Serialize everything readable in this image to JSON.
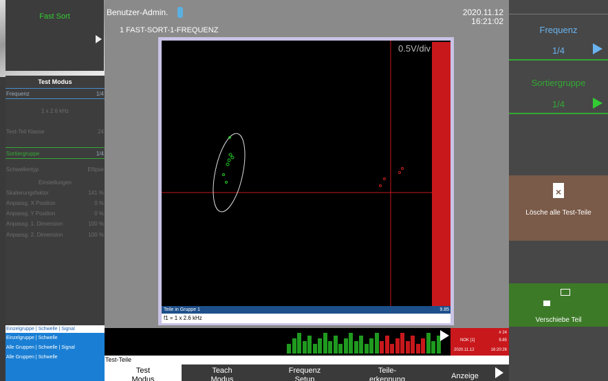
{
  "left_panel": {
    "title": "Fast Sort",
    "menu_title": "Test Modus",
    "items": [
      {
        "label": "Frequenz",
        "value": "1/4"
      },
      {
        "label": "1 x 2.6 kHz"
      },
      {
        "label": "Test-Teil Klasse",
        "value": "24"
      },
      {
        "label": "Sortiergruppe",
        "value": "1/4"
      },
      {
        "label": "Schwellentyp",
        "value": "Ellipse"
      },
      {
        "label": "Einstellungen"
      },
      {
        "label": "Skalierungsfaktor",
        "value": "141 %"
      },
      {
        "label": "Anpassg. X Position",
        "value": "0 %"
      },
      {
        "label": "Anpassg. Y Position",
        "value": "0 %"
      },
      {
        "label": "Anpassg. 1. Dimension",
        "value": "100 %"
      },
      {
        "label": "Anpassg. 2. Dimension",
        "value": "100 %"
      }
    ],
    "display_modes": [
      "Einzelgruppe | Schwelle | Signal",
      "Einzelgruppe | Schwelle",
      "Alle Gruppen | Schwelle | Signal",
      "Alle Gruppen | Schwelle"
    ]
  },
  "header": {
    "user": "Benutzer-Admin.",
    "date": "2020.11.12",
    "time": "16:21:02",
    "program": "1 FAST-SORT-1-FREQUENZ"
  },
  "scope": {
    "scale": "0.5V/div",
    "group_label": "Teile in Gruppe 1",
    "group_value": "9.85",
    "frequency": "f1 = 1 x 2.6 kHz"
  },
  "result": {
    "count": "# 24",
    "status": "NOK [1]",
    "value": "9.85",
    "date": "2020.11.12",
    "time": "16:20:26"
  },
  "list_title": "Test-Teile",
  "tabs": [
    {
      "line1": "Test",
      "line2": "Modus"
    },
    {
      "line1": "Teach",
      "line2": "Modus"
    },
    {
      "line1": "Frequenz",
      "line2": "Setup"
    },
    {
      "line1": "Teile-",
      "line2": "erkennung"
    },
    {
      "line1": "Anzeige"
    }
  ],
  "right_panel": {
    "frequency": {
      "label": "Frequenz",
      "value": "1/4"
    },
    "sort_group": {
      "label": "Sortiergruppe",
      "value": "1/4"
    },
    "delete": "Lösche alle Test-Teile",
    "move": "Verschiebe Teil"
  }
}
